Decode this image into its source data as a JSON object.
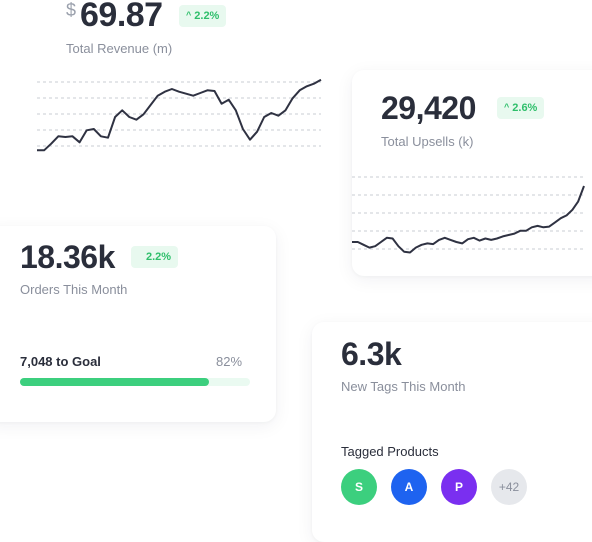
{
  "revenue": {
    "currency": "$",
    "value": "69.87",
    "change": "2.2%",
    "label": "Total Revenue (m)",
    "chart_data": {
      "type": "line",
      "x": [
        0,
        1,
        2,
        3,
        4,
        5,
        6,
        7,
        8,
        9,
        10,
        11,
        12,
        13,
        14,
        15,
        16,
        17,
        18,
        19,
        20,
        21,
        22,
        23,
        24,
        25,
        26,
        27,
        28,
        29,
        30,
        31,
        32,
        33,
        34,
        35,
        36,
        37,
        38,
        39,
        40
      ],
      "series": [
        {
          "values": [
            10,
            10,
            20,
            31,
            30,
            31,
            22,
            40,
            42,
            31,
            29,
            60,
            70,
            60,
            56,
            64,
            78,
            92,
            98,
            102,
            98,
            95,
            92,
            96,
            100,
            99,
            80,
            86,
            70,
            42,
            26,
            38,
            60,
            66,
            62,
            70,
            88,
            100,
            106,
            110,
            116
          ]
        }
      ]
    }
  },
  "upsells": {
    "value": "29,420",
    "change": "2.6%",
    "label": "Total Upsells (k)",
    "chart_data": {
      "type": "line",
      "x": [
        0,
        1,
        2,
        3,
        4,
        5,
        6,
        7,
        8,
        9,
        10,
        11,
        12,
        13,
        14,
        15,
        16,
        17,
        18,
        19,
        20,
        21,
        22,
        23,
        24,
        25,
        26,
        27,
        28,
        29,
        30,
        31,
        32,
        33,
        34,
        35,
        36,
        37,
        38,
        39,
        40
      ],
      "series": [
        {
          "values": [
            20,
            20,
            16,
            12,
            14,
            20,
            26,
            25,
            14,
            6,
            5,
            12,
            16,
            18,
            17,
            23,
            26,
            23,
            20,
            18,
            24,
            26,
            22,
            25,
            23,
            25,
            28,
            30,
            32,
            36,
            36,
            41,
            43,
            41,
            42,
            48,
            54,
            58,
            66,
            78,
            100
          ]
        }
      ]
    }
  },
  "orders": {
    "value": "18.36k",
    "change": "2.2%",
    "label": "Orders This Month",
    "goal_label": "7,048 to Goal",
    "goal_percent": "82%",
    "goal_progress": 0.82
  },
  "tags": {
    "value": "6.3k",
    "label": "New Tags This Month",
    "tagged_title": "Tagged Products",
    "avatars": [
      {
        "letter": "S",
        "color": "#3ccf7e"
      },
      {
        "letter": "A",
        "color": "#1e63f0"
      },
      {
        "letter": "P",
        "color": "#7a2ff0"
      },
      {
        "letter": "+42",
        "color": "#e6e8ec"
      }
    ]
  },
  "colors": {
    "accent_green": "#3ccf7e",
    "badge_bg": "#e8f9ef",
    "line": "#2f3242",
    "progress_track": "#eafaf1"
  }
}
